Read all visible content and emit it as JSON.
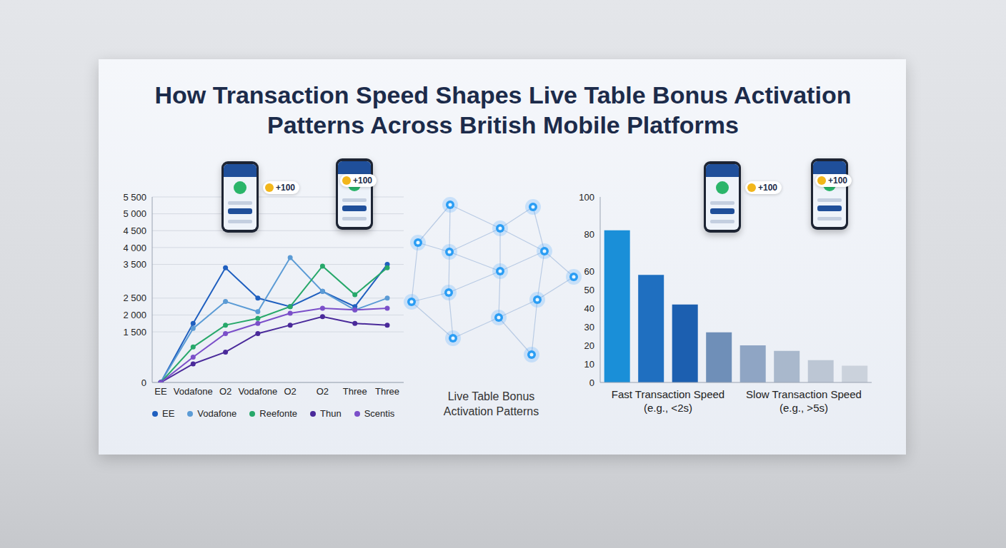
{
  "title": "How Transaction Speed Shapes Live Table Bonus Activation Patterns Across British Mobile Platforms",
  "badges": [
    "+100",
    "+100",
    "+100",
    "+100"
  ],
  "diagram": {
    "label": "Live Table Bonus Activation Patterns"
  },
  "chart_data": [
    {
      "type": "line",
      "categories": [
        "EE",
        "Vodafone",
        "O2",
        "Vodafone",
        "O2",
        "O2",
        "Three",
        "Three"
      ],
      "series": [
        {
          "name": "EE",
          "color": "#1f5fbf",
          "marker": "circle",
          "values": [
            0,
            1750,
            3400,
            2500,
            2250,
            2700,
            2250,
            3500
          ]
        },
        {
          "name": "Vodafone",
          "color": "#5b9bd5",
          "marker": "circle",
          "values": [
            0,
            1600,
            2400,
            2100,
            3700,
            2700,
            2150,
            2500
          ]
        },
        {
          "name": "Reefonte",
          "color": "#27a86a",
          "marker": "circle",
          "values": [
            0,
            1050,
            1700,
            1900,
            2250,
            3450,
            2600,
            3400
          ]
        },
        {
          "name": "Thun",
          "color": "#4a2a9a",
          "marker": "circle",
          "values": [
            0,
            550,
            900,
            1450,
            1700,
            1950,
            1750,
            1700
          ]
        },
        {
          "name": "Scentis",
          "color": "#7b4fc9",
          "marker": "circle",
          "values": [
            0,
            750,
            1450,
            1750,
            2050,
            2200,
            2150,
            2200
          ]
        }
      ],
      "ylim": [
        0,
        5500
      ],
      "yticks": [
        0,
        {
          "value": 1500,
          "label": "1 500"
        },
        {
          "value": 2000,
          "label": "2 000"
        },
        {
          "value": 2500,
          "label": "2 500"
        },
        {
          "value": 3500,
          "label": "3 500"
        },
        {
          "value": 4000,
          "label": "4 000"
        },
        {
          "value": 4500,
          "label": "4 500"
        },
        {
          "value": 5000,
          "label": "5 000"
        },
        {
          "value": 5500,
          "label": "5 500"
        }
      ],
      "grid": true,
      "legend": "bottom"
    },
    {
      "type": "bar",
      "categories": [
        null,
        "Fast Transaction Speed (e.g., <2s)",
        null,
        null,
        null,
        "Slow Transaction Speed (e.g., >5s)",
        null,
        null
      ],
      "values": [
        82,
        58,
        42,
        27,
        20,
        17,
        12,
        9
      ],
      "colors": [
        "#1a8fd8",
        "#1f6fc0",
        "#1c5fb0",
        "#6f8fb8",
        "#8fa5c4",
        "#a9b8cc",
        "#bcc6d4",
        "#cbd2dc"
      ],
      "ylim": [
        0,
        100
      ],
      "yticks": [
        0,
        10,
        20,
        30,
        40,
        50,
        60,
        80,
        100
      ],
      "grid": false
    }
  ]
}
